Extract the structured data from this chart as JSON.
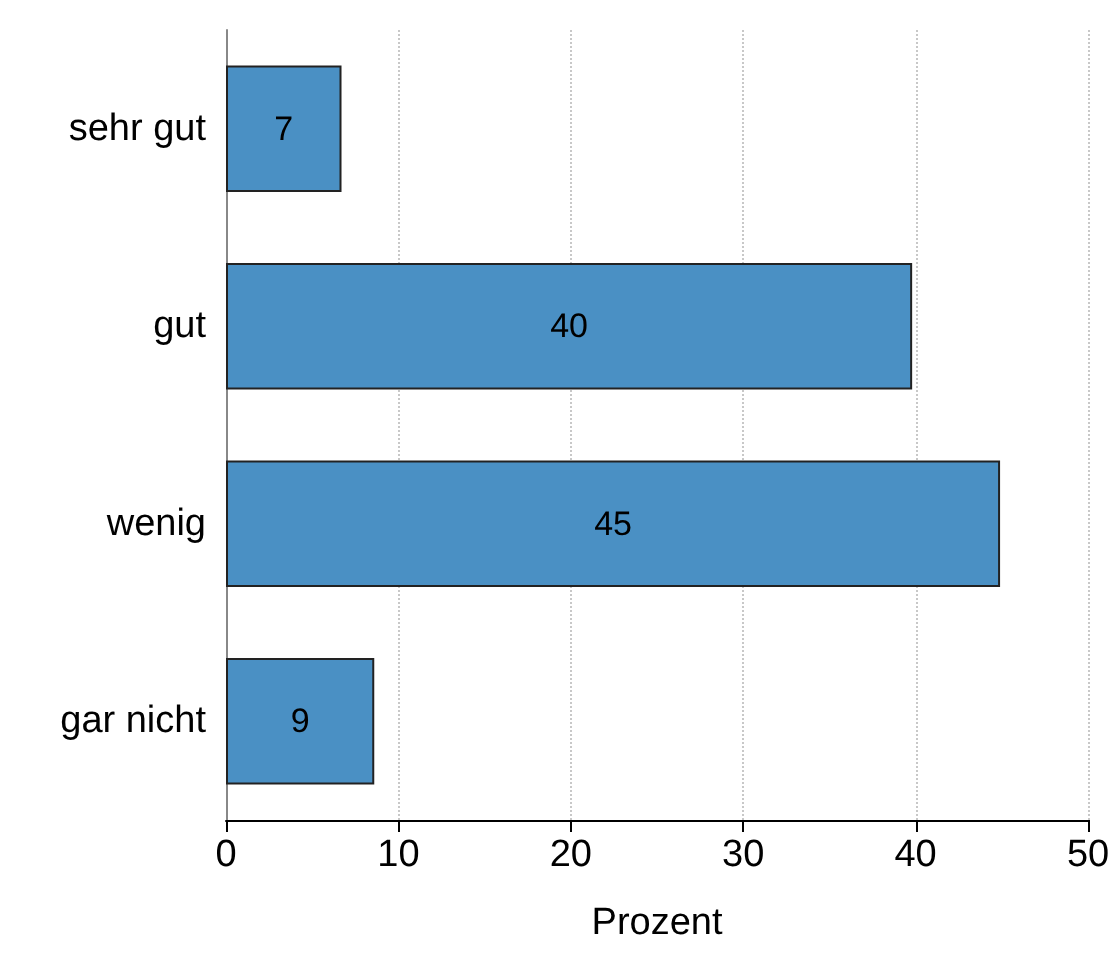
{
  "chart_data": {
    "type": "bar",
    "orientation": "horizontal",
    "xlabel": "Prozent",
    "categories": [
      "sehr gut",
      "gut",
      "wenig",
      "gar nicht"
    ],
    "values": [
      6.7,
      39.8,
      44.9,
      8.6
    ],
    "value_labels": [
      "7",
      "40",
      "45",
      "9"
    ],
    "color": "#4a90c4",
    "xlim": [
      0,
      50
    ],
    "xticks": [
      0,
      10,
      20,
      30,
      40,
      50
    ],
    "grid": "x"
  }
}
